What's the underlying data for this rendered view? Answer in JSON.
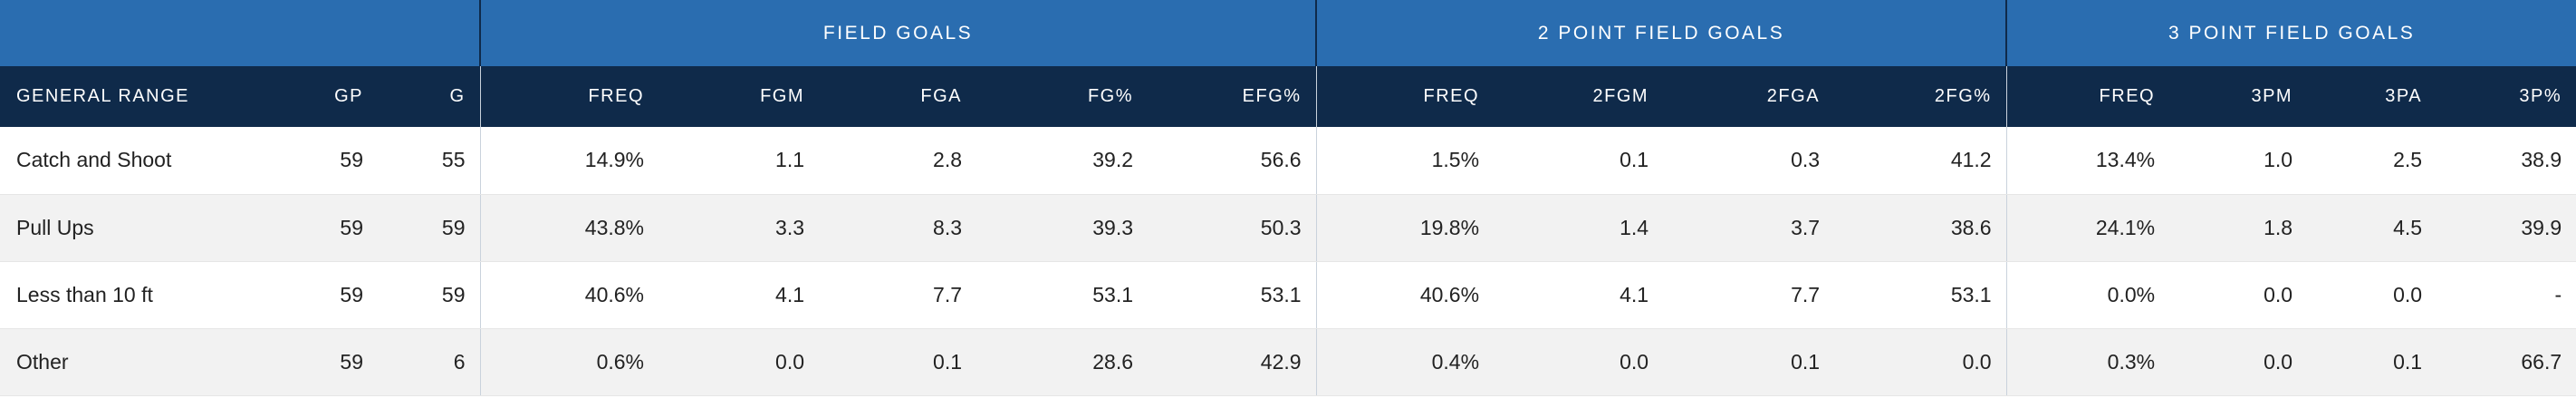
{
  "group_headers": [
    "",
    "FIELD GOALS",
    "2 POINT FIELD GOALS",
    "3 POINT FIELD GOALS"
  ],
  "columns": [
    "GENERAL RANGE",
    "GP",
    "G",
    "FREQ",
    "FGM",
    "FGA",
    "FG%",
    "EFG%",
    "FREQ",
    "2FGM",
    "2FGA",
    "2FG%",
    "FREQ",
    "3PM",
    "3PA",
    "3P%"
  ],
  "rows": [
    [
      "Catch and Shoot",
      "59",
      "55",
      "14.9%",
      "1.1",
      "2.8",
      "39.2",
      "56.6",
      "1.5%",
      "0.1",
      "0.3",
      "41.2",
      "13.4%",
      "1.0",
      "2.5",
      "38.9"
    ],
    [
      "Pull Ups",
      "59",
      "59",
      "43.8%",
      "3.3",
      "8.3",
      "39.3",
      "50.3",
      "19.8%",
      "1.4",
      "3.7",
      "38.6",
      "24.1%",
      "1.8",
      "4.5",
      "39.9"
    ],
    [
      "Less than 10 ft",
      "59",
      "59",
      "40.6%",
      "4.1",
      "7.7",
      "53.1",
      "53.1",
      "40.6%",
      "4.1",
      "7.7",
      "53.1",
      "0.0%",
      "0.0",
      "0.0",
      "-"
    ],
    [
      "Other",
      "59",
      "6",
      "0.6%",
      "0.0",
      "0.1",
      "28.6",
      "42.9",
      "0.4%",
      "0.0",
      "0.1",
      "0.0",
      "0.3%",
      "0.0",
      "0.1",
      "66.7"
    ]
  ]
}
